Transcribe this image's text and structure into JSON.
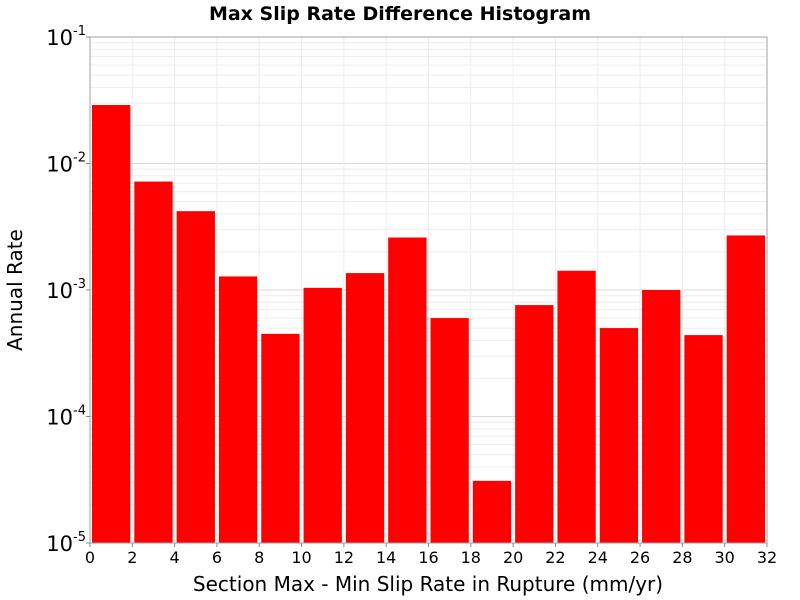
{
  "chart_data": {
    "type": "bar",
    "title": "Max Slip Rate Difference Histogram",
    "xlabel": "Section Max - Min Slip Rate in Rupture (mm/yr)",
    "ylabel": "Annual Rate",
    "xlim": [
      0,
      32
    ],
    "ylim": [
      1e-05,
      0.1
    ],
    "yscale": "log",
    "bin_width": 2,
    "x_ticks": [
      "0",
      "2",
      "4",
      "6",
      "8",
      "10",
      "12",
      "14",
      "16",
      "18",
      "20",
      "22",
      "24",
      "26",
      "28",
      "30",
      "32"
    ],
    "y_ticks": [
      {
        "base": "10",
        "exp": "-1",
        "value": 0.1
      },
      {
        "base": "10",
        "exp": "-2",
        "value": 0.01
      },
      {
        "base": "10",
        "exp": "-3",
        "value": 0.001
      },
      {
        "base": "10",
        "exp": "-4",
        "value": 0.0001
      },
      {
        "base": "10",
        "exp": "-5",
        "value": 1e-05
      }
    ],
    "bars": [
      {
        "x": 1,
        "value": 0.029
      },
      {
        "x": 3,
        "value": 0.0072
      },
      {
        "x": 5,
        "value": 0.0042
      },
      {
        "x": 7,
        "value": 0.00128
      },
      {
        "x": 9,
        "value": 0.00045
      },
      {
        "x": 11,
        "value": 0.00104
      },
      {
        "x": 13,
        "value": 0.00136
      },
      {
        "x": 15,
        "value": 0.0026
      },
      {
        "x": 17,
        "value": 0.0006
      },
      {
        "x": 19,
        "value": 3.1e-05
      },
      {
        "x": 21,
        "value": 0.00076
      },
      {
        "x": 23,
        "value": 0.00142
      },
      {
        "x": 25,
        "value": 0.0005
      },
      {
        "x": 27,
        "value": 0.001
      },
      {
        "x": 29,
        "value": 0.00044
      },
      {
        "x": 31,
        "value": 0.0027
      }
    ],
    "grid": true,
    "colors": {
      "bar": "#ff0000",
      "grid_minor": "#ececec",
      "grid_major": "#d8d8d8",
      "frame": "#a0a0a0"
    }
  }
}
